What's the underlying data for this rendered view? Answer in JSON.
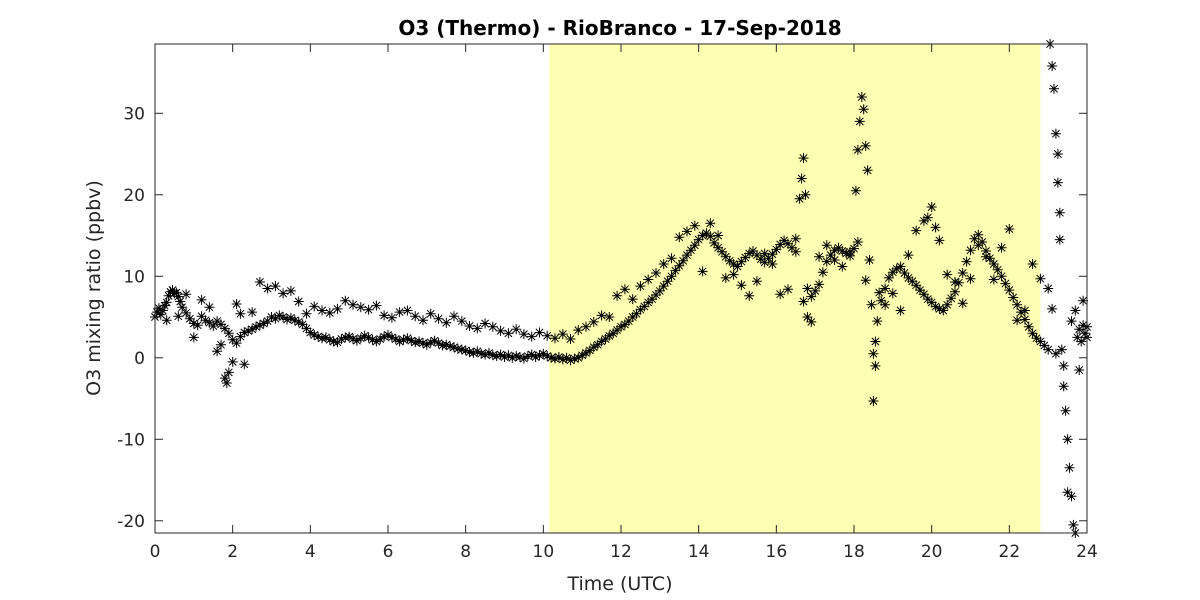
{
  "chart_data": {
    "type": "scatter",
    "title": "O3 (Thermo) - RioBranco - 17-Sep-2018",
    "xlabel": "Time (UTC)",
    "ylabel": "O3 mixing ratio (ppbv)",
    "xlim": [
      0,
      24
    ],
    "ylim": [
      -21.5,
      38.5
    ],
    "xticks": [
      0,
      2,
      4,
      6,
      8,
      10,
      12,
      14,
      16,
      18,
      20,
      22,
      24
    ],
    "yticks": [
      -20,
      -10,
      0,
      10,
      20,
      30
    ],
    "grid": false,
    "marker": "asterisk",
    "marker_color": "#000000",
    "shaded_region": {
      "x": [
        10.15,
        22.8
      ],
      "color": "#ffffb3"
    },
    "points": [
      [
        0.0,
        5.0
      ],
      [
        0.05,
        5.6
      ],
      [
        0.1,
        6.1
      ],
      [
        0.15,
        5.3
      ],
      [
        0.2,
        5.8
      ],
      [
        0.25,
        6.4
      ],
      [
        0.3,
        6.8
      ],
      [
        0.35,
        7.6
      ],
      [
        0.4,
        8.1
      ],
      [
        0.45,
        8.3
      ],
      [
        0.5,
        7.9
      ],
      [
        0.55,
        8.0
      ],
      [
        0.6,
        7.5
      ],
      [
        0.65,
        6.9
      ],
      [
        0.7,
        6.2
      ],
      [
        0.8,
        5.5
      ],
      [
        0.9,
        4.8
      ],
      [
        1.0,
        4.2
      ],
      [
        1.1,
        4.0
      ],
      [
        1.2,
        5.1
      ],
      [
        1.3,
        4.6
      ],
      [
        1.4,
        4.3
      ],
      [
        1.5,
        3.9
      ],
      [
        1.6,
        4.5
      ],
      [
        1.7,
        4.1
      ],
      [
        1.8,
        3.6
      ],
      [
        1.9,
        3.0
      ],
      [
        2.0,
        2.2
      ],
      [
        2.1,
        1.8
      ],
      [
        2.2,
        2.6
      ],
      [
        2.3,
        3.1
      ],
      [
        2.4,
        3.3
      ],
      [
        2.5,
        3.5
      ],
      [
        2.6,
        3.8
      ],
      [
        2.7,
        4.0
      ],
      [
        2.8,
        4.2
      ],
      [
        2.9,
        4.5
      ],
      [
        3.0,
        5.0
      ],
      [
        3.1,
        4.8
      ],
      [
        3.2,
        5.2
      ],
      [
        3.3,
        5.0
      ],
      [
        3.4,
        4.7
      ],
      [
        3.5,
        4.9
      ],
      [
        3.6,
        4.6
      ],
      [
        3.7,
        4.4
      ],
      [
        3.8,
        4.1
      ],
      [
        3.9,
        3.6
      ],
      [
        4.0,
        3.1
      ],
      [
        4.1,
        2.8
      ],
      [
        4.2,
        2.6
      ],
      [
        4.3,
        2.4
      ],
      [
        4.4,
        2.5
      ],
      [
        4.5,
        2.2
      ],
      [
        4.6,
        2.0
      ],
      [
        4.7,
        1.9
      ],
      [
        4.8,
        2.3
      ],
      [
        4.9,
        2.5
      ],
      [
        5.0,
        2.6
      ],
      [
        5.1,
        2.3
      ],
      [
        5.2,
        2.1
      ],
      [
        5.3,
        2.4
      ],
      [
        5.4,
        2.7
      ],
      [
        5.5,
        2.5
      ],
      [
        5.6,
        2.2
      ],
      [
        5.7,
        2.0
      ],
      [
        5.8,
        2.3
      ],
      [
        5.9,
        2.6
      ],
      [
        6.0,
        2.8
      ],
      [
        6.1,
        2.5
      ],
      [
        6.2,
        2.3
      ],
      [
        6.3,
        2.0
      ],
      [
        6.4,
        2.2
      ],
      [
        6.5,
        2.4
      ],
      [
        6.6,
        2.1
      ],
      [
        6.7,
        1.9
      ],
      [
        6.8,
        2.0
      ],
      [
        6.9,
        1.8
      ],
      [
        7.0,
        1.6
      ],
      [
        7.1,
        1.9
      ],
      [
        7.2,
        2.1
      ],
      [
        7.3,
        1.8
      ],
      [
        7.4,
        1.5
      ],
      [
        7.5,
        1.6
      ],
      [
        7.6,
        1.4
      ],
      [
        7.7,
        1.3
      ],
      [
        7.8,
        1.1
      ],
      [
        7.9,
        1.0
      ],
      [
        8.0,
        0.9
      ],
      [
        8.1,
        0.7
      ],
      [
        8.2,
        0.6
      ],
      [
        8.3,
        0.8
      ],
      [
        8.4,
        0.5
      ],
      [
        8.5,
        0.4
      ],
      [
        8.6,
        0.6
      ],
      [
        8.7,
        0.3
      ],
      [
        8.8,
        0.2
      ],
      [
        8.9,
        0.4
      ],
      [
        9.0,
        0.1
      ],
      [
        9.1,
        0.3
      ],
      [
        9.2,
        0.0
      ],
      [
        9.3,
        0.2
      ],
      [
        9.4,
        0.1
      ],
      [
        9.5,
        -0.1
      ],
      [
        9.6,
        0.2
      ],
      [
        9.7,
        0.4
      ],
      [
        9.8,
        0.1
      ],
      [
        9.9,
        0.3
      ],
      [
        10.0,
        0.5
      ],
      [
        10.1,
        0.2
      ],
      [
        10.2,
        0.0
      ],
      [
        10.3,
        -0.1
      ],
      [
        10.4,
        0.1
      ],
      [
        10.5,
        -0.2
      ],
      [
        10.6,
        0.0
      ],
      [
        10.7,
        -0.3
      ],
      [
        10.8,
        -0.1
      ],
      [
        10.9,
        0.0
      ],
      [
        11.0,
        0.3
      ],
      [
        11.1,
        0.6
      ],
      [
        11.2,
        0.9
      ],
      [
        11.3,
        1.3
      ],
      [
        11.4,
        1.6
      ],
      [
        11.5,
        2.0
      ],
      [
        11.6,
        2.3
      ],
      [
        11.7,
        2.7
      ],
      [
        11.8,
        3.0
      ],
      [
        11.9,
        3.4
      ],
      [
        12.0,
        3.8
      ],
      [
        12.1,
        4.1
      ],
      [
        12.2,
        4.5
      ],
      [
        12.3,
        5.0
      ],
      [
        12.4,
        5.4
      ],
      [
        12.5,
        5.9
      ],
      [
        12.6,
        6.3
      ],
      [
        12.7,
        6.8
      ],
      [
        12.8,
        7.2
      ],
      [
        12.9,
        7.7
      ],
      [
        13.0,
        8.2
      ],
      [
        13.1,
        8.8
      ],
      [
        13.2,
        9.4
      ],
      [
        13.3,
        10.0
      ],
      [
        13.4,
        10.7
      ],
      [
        13.5,
        11.3
      ],
      [
        13.6,
        11.9
      ],
      [
        13.7,
        12.6
      ],
      [
        13.8,
        13.2
      ],
      [
        13.9,
        13.8
      ],
      [
        14.0,
        14.5
      ],
      [
        14.1,
        15.0
      ],
      [
        14.2,
        15.3
      ],
      [
        14.3,
        14.9
      ],
      [
        14.4,
        14.1
      ],
      [
        14.5,
        13.5
      ],
      [
        14.6,
        13.0
      ],
      [
        14.7,
        12.4
      ],
      [
        14.8,
        11.9
      ],
      [
        14.9,
        11.5
      ],
      [
        15.0,
        11.2
      ],
      [
        15.1,
        11.8
      ],
      [
        15.2,
        12.3
      ],
      [
        15.3,
        12.8
      ],
      [
        15.4,
        13.1
      ],
      [
        15.5,
        12.6
      ],
      [
        15.6,
        12.1
      ],
      [
        15.7,
        11.7
      ],
      [
        15.8,
        12.2
      ],
      [
        15.9,
        12.7
      ],
      [
        16.0,
        13.3
      ],
      [
        16.1,
        13.9
      ],
      [
        16.2,
        14.4
      ],
      [
        16.3,
        14.0
      ],
      [
        16.4,
        13.5
      ],
      [
        16.5,
        13.0
      ],
      [
        16.6,
        19.5
      ],
      [
        16.65,
        22.0
      ],
      [
        16.7,
        24.5
      ],
      [
        16.75,
        20.0
      ],
      [
        16.8,
        8.5
      ],
      [
        16.9,
        7.5
      ],
      [
        17.0,
        8.2
      ],
      [
        17.1,
        9.0
      ],
      [
        17.2,
        10.5
      ],
      [
        17.3,
        11.8
      ],
      [
        17.4,
        12.6
      ],
      [
        17.5,
        13.2
      ],
      [
        17.6,
        13.5
      ],
      [
        17.7,
        13.1
      ],
      [
        17.8,
        12.8
      ],
      [
        17.9,
        13.0
      ],
      [
        18.0,
        13.4
      ],
      [
        18.05,
        20.5
      ],
      [
        18.1,
        25.5
      ],
      [
        18.15,
        29.0
      ],
      [
        18.2,
        32.0
      ],
      [
        18.25,
        30.5
      ],
      [
        18.3,
        26.0
      ],
      [
        18.35,
        23.0
      ],
      [
        18.4,
        12.0
      ],
      [
        18.45,
        6.5
      ],
      [
        18.5,
        -5.3
      ],
      [
        18.55,
        2.0
      ],
      [
        18.6,
        4.5
      ],
      [
        18.7,
        7.0
      ],
      [
        18.8,
        8.5
      ],
      [
        18.9,
        9.8
      ],
      [
        19.0,
        10.5
      ],
      [
        19.1,
        10.9
      ],
      [
        19.2,
        11.2
      ],
      [
        19.3,
        10.4
      ],
      [
        19.4,
        9.8
      ],
      [
        19.5,
        9.4
      ],
      [
        19.6,
        8.9
      ],
      [
        19.7,
        8.3
      ],
      [
        19.8,
        7.8
      ],
      [
        19.9,
        7.2
      ],
      [
        20.0,
        6.8
      ],
      [
        20.1,
        6.3
      ],
      [
        20.2,
        6.0
      ],
      [
        20.3,
        5.8
      ],
      [
        20.4,
        6.5
      ],
      [
        20.5,
        7.3
      ],
      [
        20.6,
        8.1
      ],
      [
        20.7,
        9.2
      ],
      [
        20.8,
        10.4
      ],
      [
        20.9,
        11.8
      ],
      [
        21.0,
        13.2
      ],
      [
        21.1,
        14.6
      ],
      [
        21.2,
        15.1
      ],
      [
        21.3,
        14.2
      ],
      [
        21.4,
        13.1
      ],
      [
        21.5,
        12.2
      ],
      [
        21.6,
        11.5
      ],
      [
        21.7,
        10.8
      ],
      [
        21.8,
        10.0
      ],
      [
        21.9,
        9.1
      ],
      [
        22.0,
        8.3
      ],
      [
        22.1,
        7.4
      ],
      [
        22.2,
        6.5
      ],
      [
        22.3,
        5.6
      ],
      [
        22.4,
        4.7
      ],
      [
        22.5,
        3.8
      ],
      [
        22.6,
        3.0
      ],
      [
        22.7,
        2.4
      ],
      [
        22.8,
        2.0
      ],
      [
        22.9,
        1.5
      ],
      [
        23.0,
        1.0
      ],
      [
        23.05,
        38.5
      ],
      [
        23.1,
        35.8
      ],
      [
        23.15,
        33.0
      ],
      [
        23.2,
        27.5
      ],
      [
        23.25,
        21.5
      ],
      [
        23.3,
        14.5
      ],
      [
        23.35,
        1.0
      ],
      [
        23.4,
        -1.0
      ],
      [
        23.45,
        -6.5
      ],
      [
        23.5,
        -10.0
      ],
      [
        23.55,
        -13.5
      ],
      [
        23.6,
        -17.0
      ],
      [
        23.65,
        -20.5
      ],
      [
        23.7,
        -21.5
      ],
      [
        23.75,
        2.5
      ],
      [
        23.8,
        3.5
      ],
      [
        23.85,
        2.0
      ],
      [
        23.9,
        4.0
      ],
      [
        23.95,
        3.0
      ],
      [
        24.0,
        2.5
      ],
      [
        0.3,
        4.6
      ],
      [
        0.6,
        5.1
      ],
      [
        0.8,
        7.8
      ],
      [
        1.0,
        2.5
      ],
      [
        1.2,
        7.1
      ],
      [
        1.4,
        6.2
      ],
      [
        1.6,
        0.8
      ],
      [
        1.7,
        1.6
      ],
      [
        1.8,
        -2.5
      ],
      [
        1.85,
        -3.1
      ],
      [
        1.9,
        -1.8
      ],
      [
        2.0,
        -0.5
      ],
      [
        2.1,
        6.6
      ],
      [
        2.2,
        5.4
      ],
      [
        2.3,
        -0.8
      ],
      [
        2.5,
        5.6
      ],
      [
        2.7,
        9.3
      ],
      [
        2.9,
        8.5
      ],
      [
        3.1,
        8.8
      ],
      [
        3.3,
        7.9
      ],
      [
        3.5,
        8.2
      ],
      [
        3.7,
        6.9
      ],
      [
        3.9,
        5.4
      ],
      [
        4.1,
        6.3
      ],
      [
        4.3,
        5.8
      ],
      [
        4.5,
        5.5
      ],
      [
        4.7,
        6.0
      ],
      [
        4.9,
        7.0
      ],
      [
        5.1,
        6.5
      ],
      [
        5.3,
        6.2
      ],
      [
        5.5,
        5.9
      ],
      [
        5.7,
        6.4
      ],
      [
        5.9,
        5.2
      ],
      [
        6.1,
        4.9
      ],
      [
        6.3,
        5.6
      ],
      [
        6.5,
        5.8
      ],
      [
        6.7,
        5.1
      ],
      [
        6.9,
        4.6
      ],
      [
        7.1,
        5.4
      ],
      [
        7.3,
        4.8
      ],
      [
        7.5,
        4.3
      ],
      [
        7.7,
        5.1
      ],
      [
        7.9,
        4.5
      ],
      [
        8.1,
        3.9
      ],
      [
        8.3,
        3.6
      ],
      [
        8.5,
        4.2
      ],
      [
        8.7,
        3.8
      ],
      [
        8.9,
        3.3
      ],
      [
        9.1,
        3.0
      ],
      [
        9.3,
        3.5
      ],
      [
        9.5,
        2.9
      ],
      [
        9.7,
        2.6
      ],
      [
        9.9,
        3.1
      ],
      [
        10.1,
        2.7
      ],
      [
        10.3,
        2.4
      ],
      [
        10.5,
        2.9
      ],
      [
        10.7,
        2.3
      ],
      [
        10.9,
        3.4
      ],
      [
        11.1,
        3.8
      ],
      [
        11.3,
        4.4
      ],
      [
        11.5,
        5.2
      ],
      [
        11.7,
        5.0
      ],
      [
        11.9,
        7.6
      ],
      [
        12.1,
        8.4
      ],
      [
        12.3,
        7.2
      ],
      [
        12.5,
        8.8
      ],
      [
        12.7,
        9.6
      ],
      [
        12.9,
        10.4
      ],
      [
        13.1,
        11.5
      ],
      [
        13.3,
        12.2
      ],
      [
        13.5,
        14.8
      ],
      [
        13.7,
        15.5
      ],
      [
        13.9,
        16.2
      ],
      [
        14.1,
        10.6
      ],
      [
        14.3,
        16.5
      ],
      [
        14.5,
        15.0
      ],
      [
        14.7,
        9.8
      ],
      [
        14.9,
        10.2
      ],
      [
        15.1,
        8.9
      ],
      [
        15.3,
        7.6
      ],
      [
        15.5,
        9.4
      ],
      [
        15.7,
        12.8
      ],
      [
        15.9,
        11.5
      ],
      [
        16.1,
        7.8
      ],
      [
        16.3,
        8.4
      ],
      [
        16.5,
        14.6
      ],
      [
        16.7,
        6.9
      ],
      [
        16.8,
        5.0
      ],
      [
        16.9,
        4.4
      ],
      [
        17.1,
        12.4
      ],
      [
        17.3,
        13.8
      ],
      [
        17.5,
        12.0
      ],
      [
        17.7,
        11.2
      ],
      [
        17.9,
        12.5
      ],
      [
        18.1,
        14.2
      ],
      [
        18.3,
        9.5
      ],
      [
        18.5,
        0.5
      ],
      [
        18.55,
        -1.0
      ],
      [
        18.65,
        8.0
      ],
      [
        18.8,
        6.5
      ],
      [
        19.0,
        7.9
      ],
      [
        19.2,
        5.8
      ],
      [
        19.4,
        12.6
      ],
      [
        19.6,
        15.6
      ],
      [
        19.8,
        16.8
      ],
      [
        19.9,
        17.2
      ],
      [
        20.0,
        18.5
      ],
      [
        20.1,
        16.0
      ],
      [
        20.2,
        14.4
      ],
      [
        20.4,
        10.2
      ],
      [
        20.6,
        9.3
      ],
      [
        20.8,
        6.7
      ],
      [
        21.0,
        9.7
      ],
      [
        21.2,
        13.8
      ],
      [
        21.4,
        12.4
      ],
      [
        21.6,
        9.6
      ],
      [
        21.8,
        13.5
      ],
      [
        22.0,
        15.8
      ],
      [
        22.2,
        4.6
      ],
      [
        22.4,
        5.8
      ],
      [
        22.6,
        11.5
      ],
      [
        22.8,
        9.7
      ],
      [
        23.0,
        8.5
      ],
      [
        23.1,
        6.0
      ],
      [
        23.2,
        0.5
      ],
      [
        23.25,
        25.0
      ],
      [
        23.3,
        17.8
      ],
      [
        23.4,
        -3.5
      ],
      [
        23.5,
        -16.5
      ],
      [
        23.6,
        4.5
      ],
      [
        23.7,
        5.8
      ],
      [
        23.8,
        -1.5
      ],
      [
        23.9,
        7.0
      ],
      [
        24.0,
        3.8
      ]
    ]
  }
}
